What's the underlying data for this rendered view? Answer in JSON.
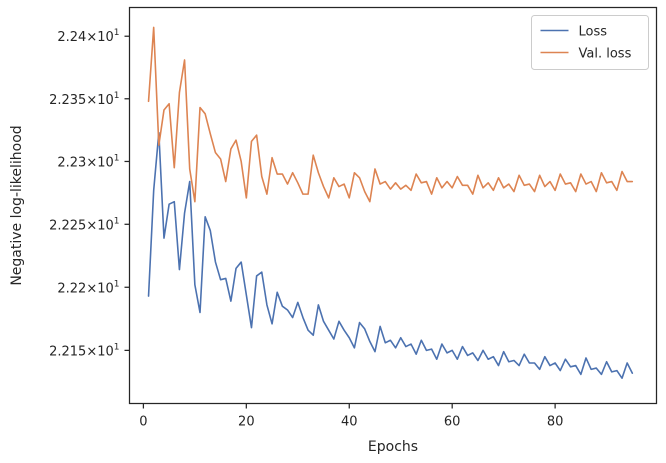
{
  "chart_data": {
    "type": "line",
    "xlabel": "Epochs",
    "ylabel": "Negative log-likelihood",
    "xlim": [
      -2.7,
      99.7
    ],
    "ylim": [
      22.108,
      22.423
    ],
    "y_scale": "log",
    "x_ticks": [
      0,
      20,
      40,
      60,
      80
    ],
    "x_tick_labels": [
      "0",
      "20",
      "40",
      "60",
      "80"
    ],
    "y_ticks": [
      22.15,
      22.2,
      22.25,
      22.3,
      22.35,
      22.4
    ],
    "y_tick_mantissas": [
      "2.215",
      "2.22",
      "2.225",
      "2.23",
      "2.235",
      "2.24"
    ],
    "y_tick_base": "10",
    "y_tick_exponent": "1",
    "y_tick_times": "×",
    "grid": false,
    "legend_position": "top-right",
    "colors": {
      "Loss": "#4c72b0",
      "Val. loss": "#dd8452"
    },
    "series": [
      {
        "name": "Loss",
        "x": [
          1,
          2,
          3,
          4,
          5,
          6,
          7,
          8,
          9,
          10,
          11,
          12,
          13,
          14,
          15,
          16,
          17,
          18,
          19,
          20,
          21,
          22,
          23,
          24,
          25,
          26,
          27,
          28,
          29,
          30,
          31,
          32,
          33,
          34,
          35,
          36,
          37,
          38,
          39,
          40,
          41,
          42,
          43,
          44,
          45,
          46,
          47,
          48,
          49,
          50,
          51,
          52,
          53,
          54,
          55,
          56,
          57,
          58,
          59,
          60,
          61,
          62,
          63,
          64,
          65,
          66,
          67,
          68,
          69,
          70,
          71,
          72,
          73,
          74,
          75,
          76,
          77,
          78,
          79,
          80,
          81,
          82,
          83,
          84,
          85,
          86,
          87,
          88,
          89,
          90,
          91,
          92,
          93,
          94,
          95
        ],
        "values": [
          22.193,
          22.277,
          22.323,
          22.239,
          22.266,
          22.268,
          22.214,
          22.259,
          22.284,
          22.202,
          22.18,
          22.256,
          22.245,
          22.22,
          22.206,
          22.207,
          22.189,
          22.215,
          22.22,
          22.194,
          22.168,
          22.209,
          22.212,
          22.186,
          22.171,
          22.196,
          22.185,
          22.182,
          22.176,
          22.188,
          22.176,
          22.166,
          22.162,
          22.186,
          22.173,
          22.166,
          22.159,
          22.173,
          22.166,
          22.16,
          22.152,
          22.172,
          22.167,
          22.157,
          22.149,
          22.169,
          22.156,
          22.158,
          22.152,
          22.16,
          22.153,
          22.155,
          22.147,
          22.158,
          22.15,
          22.151,
          22.143,
          22.155,
          22.148,
          22.15,
          22.143,
          22.153,
          22.146,
          22.148,
          22.142,
          22.15,
          22.143,
          22.145,
          22.138,
          22.149,
          22.141,
          22.142,
          22.138,
          22.147,
          22.14,
          22.14,
          22.135,
          22.145,
          22.138,
          22.14,
          22.134,
          22.143,
          22.137,
          22.138,
          22.131,
          22.144,
          22.135,
          22.136,
          22.131,
          22.141,
          22.133,
          22.134,
          22.128,
          22.14,
          22.132
        ]
      },
      {
        "name": "Val. loss",
        "x": [
          1,
          2,
          3,
          4,
          5,
          6,
          7,
          8,
          9,
          10,
          11,
          12,
          13,
          14,
          15,
          16,
          17,
          18,
          19,
          20,
          21,
          22,
          23,
          24,
          25,
          26,
          27,
          28,
          29,
          30,
          31,
          32,
          33,
          34,
          35,
          36,
          37,
          38,
          39,
          40,
          41,
          42,
          43,
          44,
          45,
          46,
          47,
          48,
          49,
          50,
          51,
          52,
          53,
          54,
          55,
          56,
          57,
          58,
          59,
          60,
          61,
          62,
          63,
          64,
          65,
          66,
          67,
          68,
          69,
          70,
          71,
          72,
          73,
          74,
          75,
          76,
          77,
          78,
          79,
          80,
          81,
          82,
          83,
          84,
          85,
          86,
          87,
          88,
          89,
          90,
          91,
          92,
          93,
          94,
          95
        ],
        "values": [
          22.348,
          22.407,
          22.313,
          22.341,
          22.346,
          22.295,
          22.355,
          22.381,
          22.294,
          22.268,
          22.343,
          22.338,
          22.322,
          22.307,
          22.302,
          22.284,
          22.31,
          22.317,
          22.3,
          22.271,
          22.316,
          22.321,
          22.288,
          22.274,
          22.303,
          22.29,
          22.29,
          22.282,
          22.291,
          22.283,
          22.274,
          22.274,
          22.305,
          22.291,
          22.28,
          22.271,
          22.287,
          22.28,
          22.282,
          22.271,
          22.291,
          22.287,
          22.276,
          22.268,
          22.294,
          22.282,
          22.284,
          22.278,
          22.283,
          22.278,
          22.281,
          22.277,
          22.29,
          22.283,
          22.284,
          22.274,
          22.287,
          22.279,
          22.284,
          22.279,
          22.288,
          22.281,
          22.281,
          22.274,
          22.289,
          22.279,
          22.283,
          22.277,
          22.287,
          22.279,
          22.282,
          22.276,
          22.289,
          22.281,
          22.282,
          22.276,
          22.289,
          22.28,
          22.284,
          22.277,
          22.29,
          22.282,
          22.283,
          22.276,
          22.29,
          22.282,
          22.284,
          22.276,
          22.291,
          22.283,
          22.284,
          22.277,
          22.292,
          22.284,
          22.284
        ]
      }
    ]
  }
}
